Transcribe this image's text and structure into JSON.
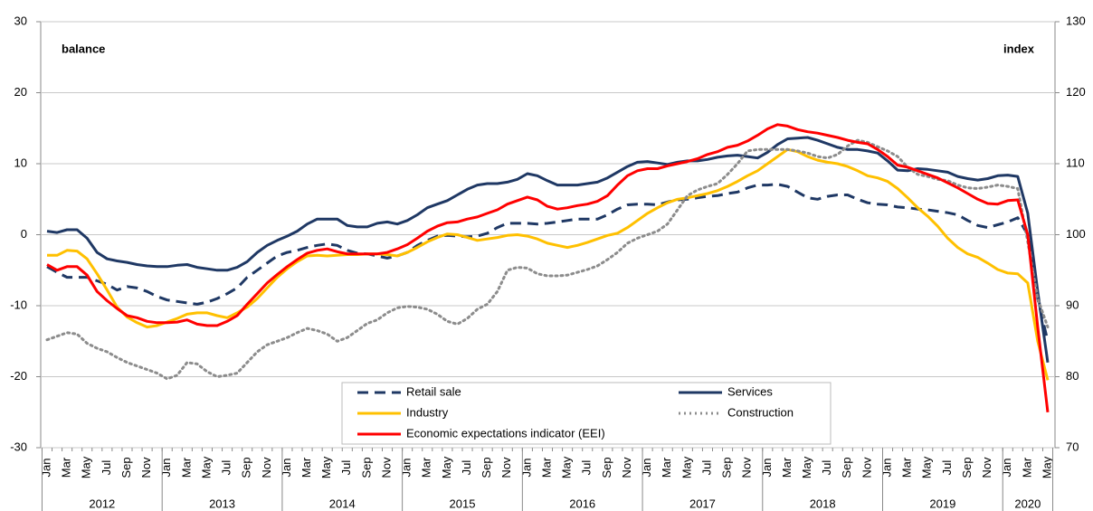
{
  "chart_data": {
    "type": "line",
    "ylabel": "balance",
    "y2label": "index",
    "categories": [
      "Jan",
      null,
      "Mar",
      null,
      "May",
      null,
      "Jul",
      null,
      "Sep",
      null,
      "Nov",
      null,
      "Jan",
      null,
      "Mar",
      null,
      "May",
      null,
      "Jul",
      null,
      "Sep",
      null,
      "Nov",
      null,
      "Jan",
      null,
      "Mar",
      null,
      "May",
      null,
      "Jul",
      null,
      "Sep",
      null,
      "Nov",
      null,
      "Jan",
      null,
      "Mar",
      null,
      "May",
      null,
      "Jul",
      null,
      "Sep",
      null,
      "Nov",
      null,
      "Jan",
      null,
      "Mar",
      null,
      "May",
      null,
      "Jul",
      null,
      "Sep",
      null,
      "Nov",
      null,
      "Jan",
      null,
      "Mar",
      null,
      "May",
      null,
      "Jul",
      null,
      "Sep",
      null,
      "Nov",
      null,
      "Jan",
      null,
      "Mar",
      null,
      "May",
      null,
      "Jul",
      null,
      "Sep",
      null,
      "Nov",
      null,
      "Jan",
      null,
      "Mar",
      null,
      "May",
      null,
      "Jul",
      null,
      "Sep",
      null,
      "Nov",
      null,
      "Jan",
      null,
      "Mar",
      null,
      "May"
    ],
    "years": [
      "2012",
      "2013",
      "2014",
      "2015",
      "2016",
      "2017",
      "2018",
      "2019",
      "2020"
    ],
    "ylim": [
      -30,
      30
    ],
    "yticks": [
      -30,
      -20,
      -10,
      0,
      10,
      20,
      30
    ],
    "y2lim": [
      70,
      130
    ],
    "y2ticks": [
      70,
      80,
      90,
      100,
      110,
      120,
      130
    ],
    "grid": true,
    "series": [
      {
        "name": "Retail sale",
        "color": "#1f3864",
        "style": "dashed",
        "values": [
          -4.5,
          -5.3,
          -6,
          -6,
          -6,
          -6.5,
          -7,
          -7.8,
          -7.3,
          -7.5,
          -8,
          -8.7,
          -9.2,
          -9.4,
          -9.6,
          -9.8,
          -9.5,
          -9,
          -8.3,
          -7.5,
          -6,
          -5,
          -4,
          -3,
          -2.5,
          -2.2,
          -1.8,
          -1.5,
          -1.3,
          -1.5,
          -2.2,
          -2.6,
          -2.7,
          -3,
          -3.3,
          -3,
          -2.5,
          -1.5,
          -0.8,
          -0.2,
          -0.1,
          -0.2,
          -0.3,
          -0.2,
          0.2,
          1,
          1.6,
          1.6,
          1.6,
          1.5,
          1.6,
          1.8,
          2,
          2.2,
          2.2,
          2.2,
          2.8,
          3.6,
          4.2,
          4.3,
          4.3,
          4.2,
          4.6,
          4.9,
          5,
          5.2,
          5.4,
          5.5,
          5.8,
          6,
          6.6,
          7,
          7,
          7.1,
          6.8,
          6,
          5.2,
          5,
          5.4,
          5.6,
          5.6,
          5,
          4.5,
          4.3,
          4.2,
          3.9,
          3.8,
          3.6,
          3.5,
          3.3,
          3.1,
          2.8,
          2,
          1.3,
          1,
          1.4,
          1.8,
          2.4,
          0,
          -9,
          -15
        ]
      },
      {
        "name": "Services",
        "color": "#1f3864",
        "style": "solid",
        "values": [
          0.5,
          0.3,
          0.7,
          0.7,
          -0.5,
          -2.5,
          -3.4,
          -3.7,
          -3.9,
          -4.2,
          -4.4,
          -4.5,
          -4.5,
          -4.3,
          -4.2,
          -4.6,
          -4.8,
          -5,
          -5,
          -4.6,
          -3.8,
          -2.5,
          -1.5,
          -0.8,
          -0.2,
          0.5,
          1.5,
          2.2,
          2.2,
          2.2,
          1.3,
          1.1,
          1.1,
          1.6,
          1.8,
          1.5,
          2,
          2.8,
          3.8,
          4.3,
          4.8,
          5.6,
          6.4,
          7,
          7.2,
          7.2,
          7.4,
          7.8,
          8.6,
          8.3,
          7.6,
          7,
          7,
          7,
          7.2,
          7.4,
          8,
          8.8,
          9.6,
          10.2,
          10.3,
          10.1,
          9.9,
          10.2,
          10.4,
          10.4,
          10.6,
          10.9,
          11.1,
          11.2,
          11,
          10.8,
          11.6,
          12.7,
          13.5,
          13.6,
          13.7,
          13.3,
          12.8,
          12.3,
          12,
          12,
          11.8,
          11.5,
          10.4,
          9.1,
          9,
          9.3,
          9.2,
          9,
          8.8,
          8.2,
          7.9,
          7.7,
          7.9,
          8.3,
          8.4,
          8.2,
          3,
          -8,
          -18
        ]
      },
      {
        "name": "Industry",
        "color": "#ffc000",
        "style": "solid",
        "values": [
          -2.9,
          -2.9,
          -2.2,
          -2.3,
          -3.4,
          -5.5,
          -7.8,
          -10.2,
          -11.6,
          -12.4,
          -13,
          -12.8,
          -12.3,
          -11.8,
          -11.2,
          -11,
          -11,
          -11.4,
          -11.7,
          -11,
          -10.2,
          -9,
          -7.5,
          -6,
          -4.8,
          -3.8,
          -3,
          -2.9,
          -3,
          -2.9,
          -2.8,
          -2.8,
          -2.7,
          -2.7,
          -2.8,
          -3,
          -2.5,
          -1.8,
          -1,
          -0.4,
          0.1,
          0,
          -0.4,
          -0.8,
          -0.6,
          -0.4,
          -0.1,
          0,
          -0.2,
          -0.6,
          -1.2,
          -1.5,
          -1.8,
          -1.5,
          -1.1,
          -0.6,
          -0.1,
          0.2,
          1,
          2,
          3,
          3.8,
          4.5,
          5,
          5.2,
          5.5,
          5.8,
          6.2,
          6.8,
          7.5,
          8.3,
          9,
          10,
          11,
          12,
          11.7,
          11,
          10.5,
          10.2,
          10,
          9.6,
          9,
          8.3,
          8,
          7.5,
          6.5,
          5.2,
          3.8,
          2.6,
          1.2,
          -0.5,
          -1.8,
          -2.7,
          -3.2,
          -4,
          -4.9,
          -5.4,
          -5.5,
          -6.8,
          -15,
          -20.5
        ]
      },
      {
        "name": "Construction",
        "color": "#8c8c8c",
        "style": "dotted",
        "values": [
          -14.8,
          -14.3,
          -13.8,
          -14,
          -15.3,
          -16,
          -16.5,
          -17.3,
          -18,
          -18.5,
          -19,
          -19.5,
          -20.3,
          -19.8,
          -18,
          -18.2,
          -19.3,
          -20,
          -19.8,
          -19.5,
          -18,
          -16.5,
          -15.5,
          -15,
          -14.5,
          -13.8,
          -13.2,
          -13.5,
          -14,
          -15,
          -14.5,
          -13.5,
          -12.5,
          -12,
          -11,
          -10.3,
          -10.1,
          -10.2,
          -10.5,
          -11.2,
          -12.2,
          -12.6,
          -11.8,
          -10.5,
          -9.8,
          -8,
          -5,
          -4.6,
          -4.7,
          -5.5,
          -5.8,
          -5.8,
          -5.7,
          -5.3,
          -4.9,
          -4.4,
          -3.5,
          -2.5,
          -1.2,
          -0.5,
          0,
          0.5,
          1.5,
          3.5,
          5.5,
          6.3,
          6.8,
          7.2,
          8.5,
          10,
          11.8,
          12,
          12,
          12,
          12,
          11.8,
          11.5,
          11,
          10.8,
          11.3,
          12.5,
          13.3,
          13,
          12.4,
          11.8,
          11,
          9.5,
          8.5,
          8.2,
          7.8,
          7.6,
          7,
          6.6,
          6.5,
          6.7,
          7,
          6.8,
          6.5,
          -1,
          -9,
          -13
        ]
      },
      {
        "name": "Economic expectations indicator (EEI)",
        "color": "#ff0000",
        "style": "solid",
        "axis": "y2",
        "values": [
          95.8,
          95,
          95.5,
          95.5,
          94.3,
          92,
          90.7,
          89.6,
          88.6,
          88.3,
          87.8,
          87.6,
          87.6,
          87.7,
          88,
          87.4,
          87.2,
          87.2,
          87.8,
          88.6,
          90.2,
          91.7,
          93.2,
          94.4,
          95.5,
          96.5,
          97.4,
          97.8,
          98,
          97.6,
          97.3,
          97.3,
          97.3,
          97.3,
          97.5,
          98,
          98.6,
          99.5,
          100.5,
          101.2,
          101.7,
          101.8,
          102.2,
          102.5,
          103,
          103.5,
          104.3,
          104.8,
          105.3,
          104.9,
          104,
          103.6,
          103.8,
          104.1,
          104.3,
          104.7,
          105.5,
          107,
          108.3,
          109,
          109.3,
          109.3,
          109.7,
          110,
          110.3,
          110.7,
          111.3,
          111.7,
          112.3,
          112.6,
          113.2,
          114,
          114.9,
          115.5,
          115.3,
          114.8,
          114.5,
          114.3,
          114,
          113.7,
          113.3,
          113,
          112.8,
          112,
          111,
          109.8,
          109.5,
          109,
          108.5,
          108,
          107.3,
          106.6,
          105.8,
          105,
          104.4,
          104.3,
          104.8,
          104.9,
          100,
          87,
          75
        ]
      }
    ]
  }
}
